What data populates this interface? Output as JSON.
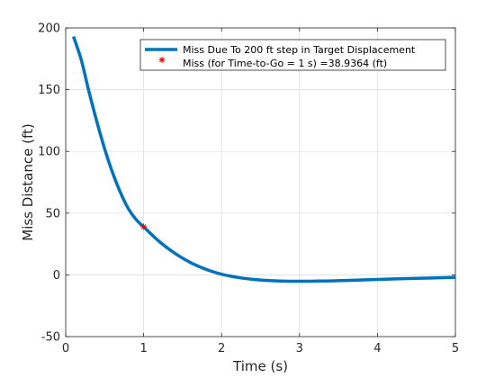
{
  "chart_data": {
    "type": "line",
    "title": "",
    "xlabel": "Time (s)",
    "ylabel": "Miss Distance (ft)",
    "xlim": [
      0,
      5
    ],
    "ylim": [
      -50,
      200
    ],
    "xticks": [
      0,
      1,
      2,
      3,
      4,
      5
    ],
    "yticks": [
      -50,
      0,
      50,
      100,
      150,
      200
    ],
    "xtick_labels": [
      "0",
      "1",
      "2",
      "3",
      "4",
      "5"
    ],
    "ytick_labels": [
      "-50",
      "0",
      "50",
      "100",
      "150",
      "200"
    ],
    "grid": true,
    "legend_position": "top-right",
    "series": [
      {
        "name": "Miss Due To 200 ft step in Target Displacement",
        "color": "#0072BD",
        "style": "line",
        "x": [
          0.1,
          0.2,
          0.3,
          0.4,
          0.5,
          0.6,
          0.7,
          0.8,
          0.9,
          1.0,
          1.2,
          1.4,
          1.6,
          1.8,
          2.0,
          2.25,
          2.5,
          2.75,
          3.0,
          3.25,
          3.5,
          4.0,
          4.5,
          5.0
        ],
        "y": [
          193,
          174,
          148,
          124,
          102,
          83,
          67,
          54,
          45,
          38.9,
          27,
          17.5,
          10,
          4.5,
          0.5,
          -2.5,
          -4.2,
          -5,
          -5.2,
          -5,
          -4.7,
          -3.7,
          -2.8,
          -2
        ]
      },
      {
        "name": "Miss (for Time-to-Go = 1 s) =38.9364 (ft)",
        "color": "#FF0000",
        "style": "marker",
        "marker": "asterisk",
        "x": [
          1.0
        ],
        "y": [
          38.9364
        ]
      }
    ]
  }
}
